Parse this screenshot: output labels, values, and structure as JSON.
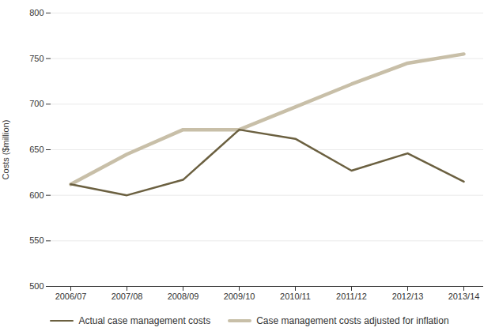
{
  "chart_data": {
    "type": "line",
    "categories": [
      "2006/07",
      "2007/08",
      "2008/09",
      "2009/10",
      "2010/11",
      "2011/12",
      "2012/13",
      "2013/14"
    ],
    "series": [
      {
        "name": "Actual case management costs",
        "color": "#6b6040",
        "values": [
          612,
          600,
          617,
          672,
          662,
          627,
          646,
          615
        ]
      },
      {
        "name": "Case management costs adjusted for inflation",
        "color": "#c8bfa8",
        "values": [
          612,
          645,
          672,
          672,
          697,
          722,
          745,
          755
        ]
      }
    ],
    "y_label": "Costs ($million)",
    "ylim": [
      500,
      800
    ],
    "yticks": [
      500,
      550,
      600,
      650,
      700,
      750,
      800
    ],
    "grid": true,
    "legend": "bottom"
  }
}
